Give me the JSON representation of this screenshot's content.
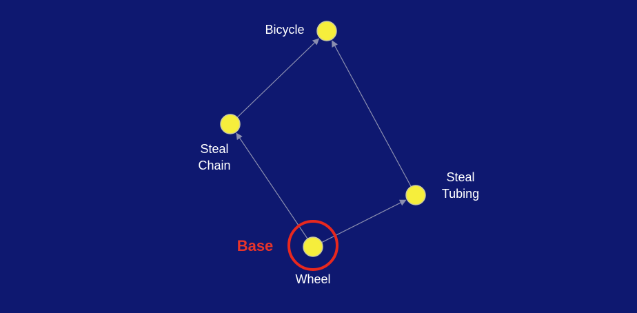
{
  "nodes": [
    {
      "id": "bicycle",
      "label_lines": [
        "Bicycle"
      ]
    },
    {
      "id": "steal-chain",
      "label_lines": [
        "Steal",
        "Chain"
      ]
    },
    {
      "id": "steal-tubing",
      "label_lines": [
        "Steal",
        "Tubing"
      ]
    },
    {
      "id": "wheel",
      "label_lines": [
        "Wheel"
      ]
    }
  ],
  "edges": [
    {
      "from": "wheel",
      "to": "steal-chain"
    },
    {
      "from": "wheel",
      "to": "steal-tubing"
    },
    {
      "from": "steal-chain",
      "to": "bicycle"
    },
    {
      "from": "steal-tubing",
      "to": "bicycle"
    }
  ],
  "annotation": {
    "text": "Base",
    "target": "wheel",
    "color": "#e8281e"
  },
  "colors": {
    "background": "#0e1870",
    "node_fill": "#f6ee3c",
    "edge": "#8b8fb0",
    "label": "#ffffff"
  }
}
